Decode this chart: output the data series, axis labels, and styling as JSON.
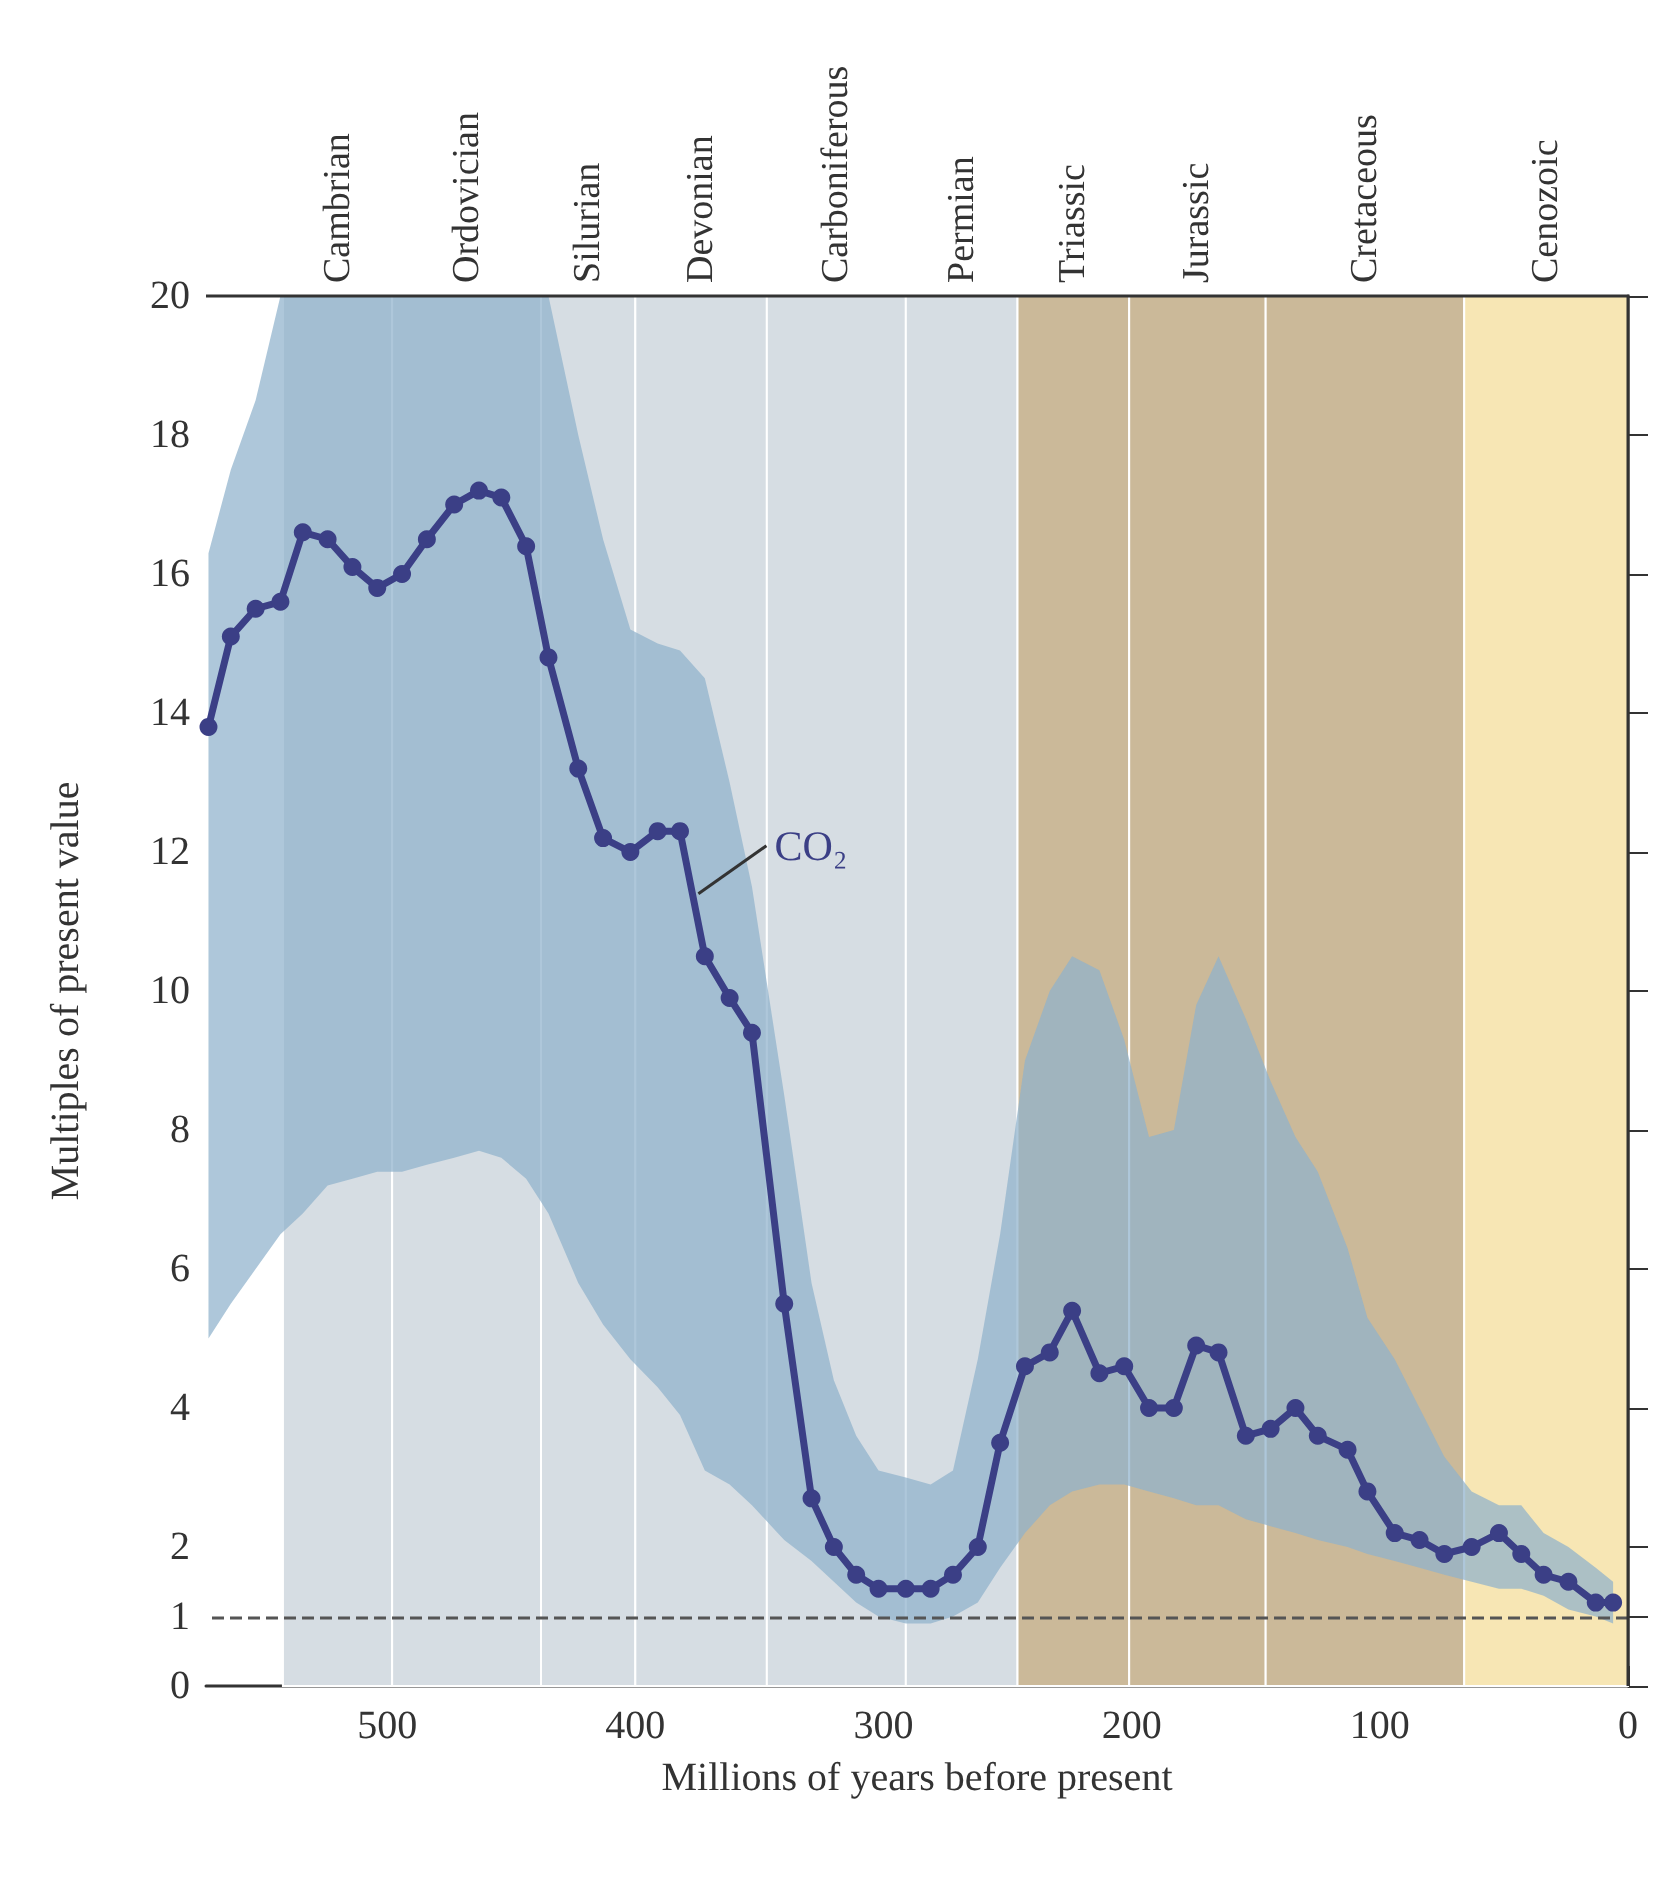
{
  "chart_data": {
    "type": "line",
    "xlabel": "Millions of years before present",
    "ylabel": "Multiples of present value",
    "x": [
      572,
      563,
      553,
      543,
      534,
      524,
      514,
      504,
      494,
      484,
      473,
      463,
      454,
      444,
      435,
      423,
      413,
      402,
      391,
      382,
      372,
      362,
      353,
      340,
      329,
      320,
      311,
      302,
      291,
      281,
      272,
      262,
      253,
      243,
      233,
      224,
      213,
      203,
      193,
      183,
      174,
      165,
      154,
      144,
      134,
      125,
      113,
      105,
      94,
      84,
      74,
      63,
      52,
      43,
      34,
      24,
      13,
      6
    ],
    "series": [
      {
        "name": "CO₂",
        "color": "#3b3f86",
        "values": [
          13.8,
          15.1,
          15.5,
          15.6,
          16.6,
          16.5,
          16.1,
          15.8,
          16.0,
          16.5,
          17.0,
          17.2,
          17.1,
          16.4,
          14.8,
          13.2,
          12.2,
          12.0,
          12.3,
          12.3,
          10.5,
          9.9,
          9.4,
          5.5,
          2.7,
          2.0,
          1.6,
          1.4,
          1.4,
          1.4,
          1.6,
          2.0,
          3.5,
          4.6,
          4.8,
          5.4,
          4.5,
          4.6,
          4.0,
          4.0,
          4.9,
          4.8,
          3.6,
          3.7,
          4.0,
          3.6,
          3.4,
          2.8,
          2.2,
          2.1,
          1.9,
          2.0,
          2.2,
          1.9,
          1.6,
          1.5,
          1.2,
          1.2
        ],
        "upper": [
          16.3,
          17.5,
          18.5,
          20,
          20,
          20,
          20,
          20,
          20,
          20,
          20,
          20,
          20,
          20,
          20,
          18,
          16.5,
          15.2,
          15,
          14.9,
          14.5,
          13,
          11.5,
          8.5,
          5.8,
          4.4,
          3.6,
          3.1,
          3.0,
          2.9,
          3.1,
          4.7,
          6.5,
          9.0,
          10.0,
          10.5,
          10.3,
          9.3,
          7.9,
          8.0,
          9.8,
          10.5,
          9.6,
          8.7,
          7.9,
          7.4,
          6.3,
          5.3,
          4.7,
          4.0,
          3.3,
          2.8,
          2.6,
          2.6,
          2.2,
          2.0,
          1.7,
          1.5
        ],
        "lower": [
          5.0,
          5.5,
          6.0,
          6.5,
          6.8,
          7.2,
          7.3,
          7.4,
          7.4,
          7.5,
          7.6,
          7.7,
          7.6,
          7.3,
          6.8,
          5.8,
          5.2,
          4.7,
          4.3,
          3.9,
          3.1,
          2.9,
          2.6,
          2.1,
          1.8,
          1.5,
          1.2,
          1.0,
          0.9,
          0.9,
          1.0,
          1.2,
          1.7,
          2.2,
          2.6,
          2.8,
          2.9,
          2.9,
          2.8,
          2.7,
          2.6,
          2.6,
          2.4,
          2.3,
          2.2,
          2.1,
          2.0,
          1.9,
          1.8,
          1.7,
          1.6,
          1.5,
          1.4,
          1.4,
          1.3,
          1.1,
          1.0,
          0.9
        ]
      }
    ],
    "xlim": [
      573,
      0
    ],
    "xticks": [
      500,
      400,
      300,
      200,
      100,
      0
    ],
    "ylim": [
      0,
      20
    ],
    "yticks": [
      0,
      1,
      2,
      4,
      6,
      8,
      10,
      12,
      14,
      16,
      18,
      20
    ],
    "grid": false,
    "legend": false,
    "marker": "circle",
    "line_style": "solid",
    "ref_lines": [
      {
        "axis": "y",
        "value": 1,
        "color": "#555555",
        "line_style": "dashed"
      }
    ],
    "bands": [
      {
        "axis": "x",
        "from": 542,
        "to": 498,
        "label": "Cambrian",
        "color": "#d6dde3"
      },
      {
        "axis": "x",
        "from": 498,
        "to": 438,
        "label": "Ordovician",
        "color": "#d6dde3"
      },
      {
        "axis": "x",
        "from": 438,
        "to": 400,
        "label": "Silurian",
        "color": "#d6dde3"
      },
      {
        "axis": "x",
        "from": 400,
        "to": 347,
        "label": "Devonian",
        "color": "#d6dde3"
      },
      {
        "axis": "x",
        "from": 347,
        "to": 291,
        "label": "Carboniferous",
        "color": "#d6dde3"
      },
      {
        "axis": "x",
        "from": 291,
        "to": 246,
        "label": "Permian",
        "color": "#d6dde3"
      },
      {
        "axis": "x",
        "from": 246,
        "to": 201,
        "label": "Triassic",
        "color": "#cbb999"
      },
      {
        "axis": "x",
        "from": 201,
        "to": 146,
        "label": "Jurassic",
        "color": "#cbb999"
      },
      {
        "axis": "x",
        "from": 146,
        "to": 66,
        "label": "Cretaceous",
        "color": "#cbb999"
      },
      {
        "axis": "x",
        "from": 66,
        "to": 0,
        "label": "Cenozoic",
        "color": "#f7e6b4"
      }
    ]
  }
}
